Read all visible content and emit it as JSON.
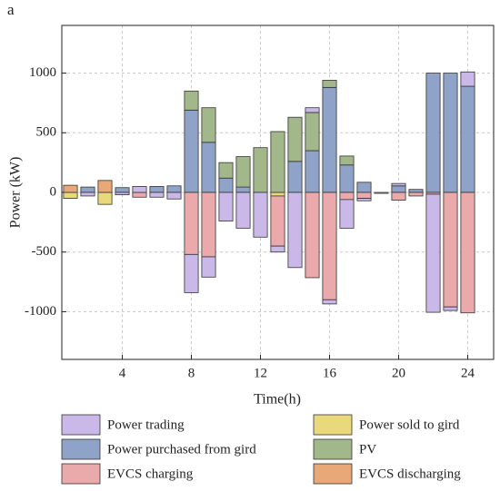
{
  "chart_data": {
    "type": "bar",
    "panel_label": "a",
    "y_label": "Power (kW)",
    "x_label": "Time(h)",
    "x": [
      1,
      2,
      3,
      4,
      5,
      6,
      7,
      8,
      9,
      10,
      11,
      12,
      13,
      14,
      15,
      16,
      17,
      18,
      19,
      20,
      21,
      22,
      23,
      24
    ],
    "xlim": [
      0.5,
      25.5
    ],
    "xticks": [
      4,
      8,
      12,
      16,
      20,
      24
    ],
    "ylim": [
      -1400,
      1400
    ],
    "yticks": [
      -1000,
      -500,
      0,
      500,
      1000
    ],
    "grid": true,
    "stacked": true,
    "series": [
      {
        "name": "Power trading",
        "color": "#c9b8e8",
        "values": [
          0,
          -30,
          0,
          -20,
          50,
          -40,
          -55,
          -320,
          -170,
          -240,
          -300,
          -375,
          -50,
          -630,
          40,
          -35,
          -240,
          -20,
          -8,
          20,
          0,
          -990,
          -30,
          120
        ]
      },
      {
        "name": "Power sold to gird",
        "color": "#e9d97c",
        "values": [
          -50,
          0,
          -100,
          0,
          0,
          0,
          0,
          0,
          0,
          0,
          0,
          0,
          -30,
          0,
          0,
          0,
          0,
          0,
          0,
          0,
          0,
          0,
          0,
          0
        ]
      },
      {
        "name": "Power purchased from gird",
        "color": "#8fa2c7",
        "values": [
          0,
          45,
          0,
          40,
          0,
          50,
          55,
          690,
          420,
          120,
          45,
          0,
          0,
          260,
          350,
          880,
          230,
          85,
          0,
          55,
          25,
          1000,
          1000,
          890
        ]
      },
      {
        "name": "PV",
        "color": "#a2b88b",
        "values": [
          0,
          0,
          0,
          0,
          0,
          0,
          0,
          160,
          290,
          130,
          255,
          375,
          510,
          370,
          320,
          60,
          75,
          0,
          0,
          0,
          0,
          0,
          0,
          0
        ]
      },
      {
        "name": "EVCS charging",
        "color": "#eaa9ab",
        "values": [
          0,
          0,
          0,
          0,
          -40,
          0,
          0,
          -520,
          -540,
          0,
          0,
          0,
          -420,
          0,
          -715,
          -900,
          -60,
          -50,
          0,
          -65,
          -30,
          -15,
          -960,
          -1010
        ]
      },
      {
        "name": "EVCS discharging",
        "color": "#e8a877",
        "values": [
          60,
          0,
          100,
          0,
          0,
          0,
          0,
          0,
          0,
          0,
          0,
          0,
          0,
          0,
          0,
          0,
          0,
          0,
          0,
          0,
          0,
          0,
          0,
          0
        ]
      }
    ]
  }
}
